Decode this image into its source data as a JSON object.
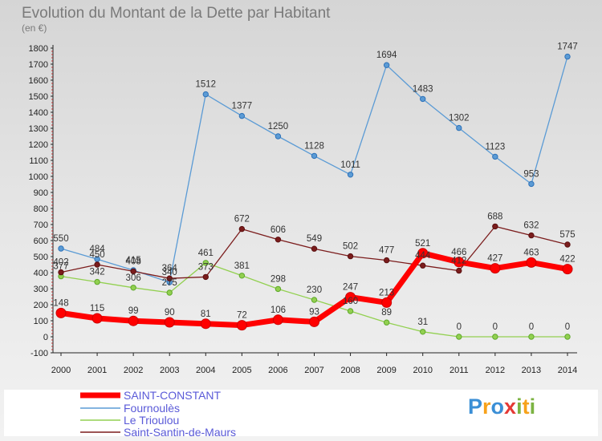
{
  "chart_data": {
    "type": "line",
    "title": "Evolution du Montant de la Dette par Habitant",
    "subtitle": "(en €)",
    "x": [
      "2000",
      "2001",
      "2002",
      "2003",
      "2004",
      "2005",
      "2006",
      "2007",
      "2008",
      "2009",
      "2010",
      "2011",
      "2012",
      "2013",
      "2014"
    ],
    "ylim": [
      -100,
      1800
    ],
    "yticks": [
      -100,
      0,
      100,
      200,
      300,
      400,
      500,
      600,
      700,
      800,
      900,
      1000,
      1100,
      1200,
      1300,
      1400,
      1500,
      1600,
      1700,
      1800
    ],
    "grid": false,
    "legend_position": "bottom-left",
    "series": [
      {
        "name": "SAINT-CONSTANT",
        "color": "#ff0000",
        "values": [
          148,
          115,
          99,
          90,
          81,
          72,
          106,
          93,
          247,
          213,
          521,
          466,
          427,
          463,
          422
        ]
      },
      {
        "name": "Fournoulès",
        "color": "#5b9bd5",
        "values": [
          550,
          484,
          415,
          340,
          1512,
          1377,
          1250,
          1128,
          1011,
          1694,
          1483,
          1302,
          1123,
          953,
          1747
        ]
      },
      {
        "name": "Le Trioulou",
        "color": "#92d050",
        "values": [
          377,
          342,
          306,
          275,
          461,
          381,
          298,
          230,
          160,
          89,
          31,
          0,
          0,
          0,
          0
        ]
      },
      {
        "name": "Saint-Santin-de-Maurs",
        "color": "#7b1c1c",
        "values": [
          402,
          450,
          408,
          364,
          373,
          672,
          606,
          549,
          502,
          477,
          444,
          412,
          688,
          632,
          575
        ]
      }
    ]
  },
  "branding": {
    "logo_text": "Proxiti",
    "letters": [
      "P",
      "r",
      "o",
      "x",
      "i",
      "t",
      "i"
    ],
    "letter_colors": [
      "#3b8fd6",
      "#f7a21b",
      "#3b8fd6",
      "#e53935",
      "#7cb342",
      "#f7a21b",
      "#7cb342"
    ]
  }
}
